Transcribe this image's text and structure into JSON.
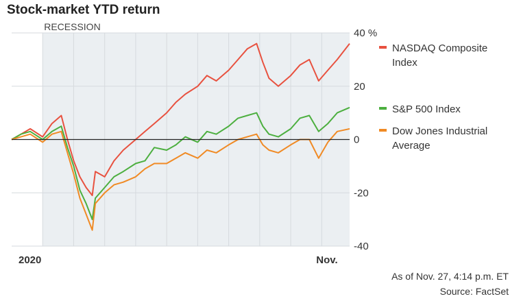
{
  "title": "Stock-market YTD return",
  "as_of": "As of Nov. 27, 4:14 p.m. ET",
  "source": "Source: FactSet",
  "chart_data": {
    "type": "line",
    "title": "Stock-market YTD return",
    "xlabel": "",
    "ylabel": "",
    "ylim": [
      -40,
      40
    ],
    "y_ticks": [
      "40 %",
      "20",
      "0",
      "-20",
      "-40"
    ],
    "x_tick_labels": [
      "2020",
      "Nov."
    ],
    "x_unit": "months since Jan 1 2020",
    "xlim": [
      0,
      10.9
    ],
    "annotation": "RECESSION",
    "recession_start": 1.0,
    "zero_line": true,
    "grid": true,
    "legend": "right",
    "series": [
      {
        "name": "NASDAQ Composite Index",
        "color": "#e8513f",
        "x": [
          0,
          0.3,
          0.6,
          1.0,
          1.3,
          1.6,
          1.8,
          2.0,
          2.2,
          2.4,
          2.6,
          2.7,
          3.0,
          3.3,
          3.6,
          4.0,
          4.3,
          4.6,
          5.0,
          5.3,
          5.6,
          6.0,
          6.3,
          6.6,
          7.0,
          7.3,
          7.6,
          7.9,
          8.1,
          8.3,
          8.6,
          9.0,
          9.3,
          9.6,
          9.9,
          10.2,
          10.5,
          10.9
        ],
        "y": [
          0,
          2,
          4,
          1,
          6,
          9,
          0,
          -8,
          -14,
          -18,
          -21,
          -12,
          -14,
          -8,
          -4,
          0,
          3,
          6,
          10,
          14,
          17,
          20,
          24,
          22,
          26,
          30,
          34,
          36,
          29,
          23,
          20,
          24,
          28,
          30,
          22,
          26,
          30,
          36
        ]
      },
      {
        "name": "S&P 500 Index",
        "color": "#4caf3f",
        "x": [
          0,
          0.3,
          0.6,
          1.0,
          1.3,
          1.6,
          1.8,
          2.0,
          2.2,
          2.4,
          2.6,
          2.7,
          3.0,
          3.3,
          3.6,
          4.0,
          4.3,
          4.6,
          5.0,
          5.3,
          5.6,
          6.0,
          6.3,
          6.6,
          7.0,
          7.3,
          7.6,
          7.9,
          8.1,
          8.3,
          8.6,
          9.0,
          9.3,
          9.6,
          9.9,
          10.2,
          10.5,
          10.9
        ],
        "y": [
          0,
          2,
          3,
          0,
          3,
          5,
          -3,
          -10,
          -19,
          -24,
          -30,
          -22,
          -18,
          -14,
          -12,
          -9,
          -8,
          -3,
          -4,
          -2,
          1,
          -1,
          3,
          2,
          5,
          8,
          9,
          10,
          5,
          2,
          1,
          4,
          8,
          9,
          3,
          6,
          10,
          12
        ]
      },
      {
        "name": "Dow Jones Industrial Average",
        "color": "#f08a24",
        "x": [
          0,
          0.3,
          0.6,
          1.0,
          1.3,
          1.6,
          1.8,
          2.0,
          2.2,
          2.4,
          2.6,
          2.7,
          3.0,
          3.3,
          3.6,
          4.0,
          4.3,
          4.6,
          5.0,
          5.3,
          5.6,
          6.0,
          6.3,
          6.6,
          7.0,
          7.3,
          7.6,
          7.9,
          8.1,
          8.3,
          8.6,
          9.0,
          9.3,
          9.6,
          9.9,
          10.2,
          10.5,
          10.9
        ],
        "y": [
          0,
          1,
          2,
          -1,
          2,
          3,
          -5,
          -13,
          -22,
          -28,
          -34,
          -24,
          -20,
          -17,
          -16,
          -14,
          -11,
          -9,
          -9,
          -7,
          -5,
          -7,
          -4,
          -5,
          -2,
          0,
          1,
          2,
          -2,
          -4,
          -5,
          -2,
          0,
          0,
          -7,
          -1,
          3,
          4
        ]
      }
    ]
  }
}
